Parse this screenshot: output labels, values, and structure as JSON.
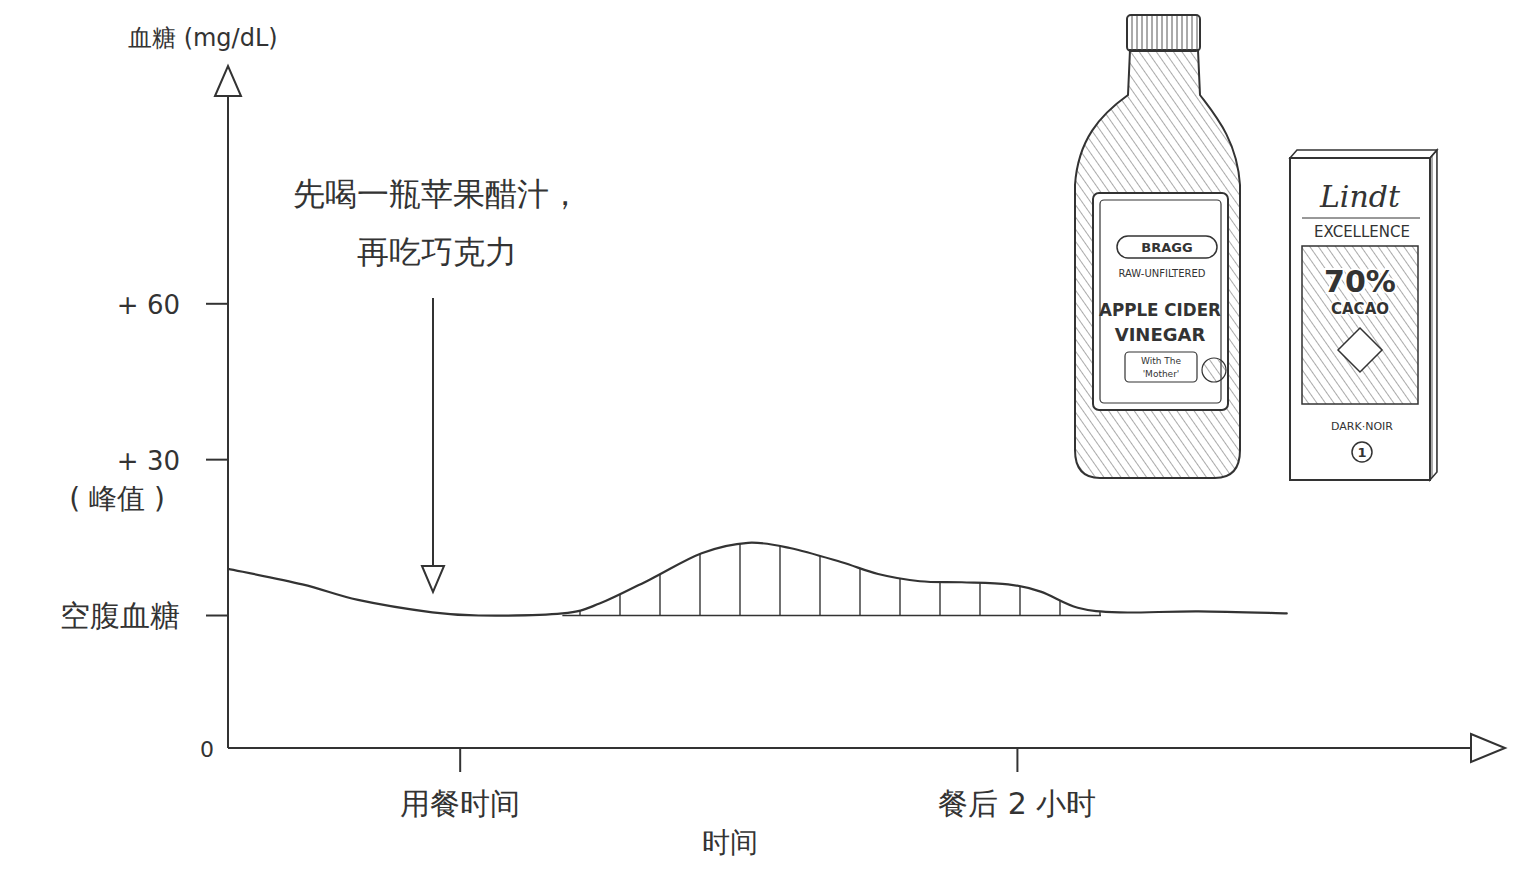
{
  "chart_data": {
    "type": "line",
    "y_label": "血糖 (mg/dL)",
    "x_label": "时间",
    "origin_label": "0",
    "x": [
      -50,
      -34,
      -22,
      -6,
      4,
      22,
      30,
      41,
      52,
      62,
      71,
      82,
      90,
      99,
      108,
      118,
      125,
      133,
      142,
      159,
      178
    ],
    "values": [
      9,
      6,
      3,
      0.6,
      0,
      0.4,
      2.3,
      7,
      12,
      14,
      13,
      10.3,
      8,
      6.6,
      6.4,
      6,
      4.6,
      1.5,
      0.6,
      0.8,
      0.4
    ],
    "color": "#333333",
    "shaded_range": [
      22,
      138
    ],
    "xlim": [
      -50,
      225
    ],
    "xticks": [
      {
        "value": 0,
        "label": "用餐时间"
      },
      {
        "value": 120,
        "label": "餐后 2 小时"
      }
    ],
    "ylim": [
      -25.5,
      105
    ],
    "yticks": [
      {
        "value": 0,
        "label": "空腹血糖"
      },
      {
        "value": 30,
        "label": "+ 30"
      },
      {
        "value": 60,
        "label": "+ 60"
      }
    ],
    "peak_label": "( 峰值 )",
    "annotation": [
      "先喝一瓶苹果醋汁，",
      "再吃巧克力"
    ],
    "grid": false
  },
  "illustrations": {
    "vinegar_bottle": {
      "brand": "BRAGG",
      "lines": [
        "RAW-UNFILTERED",
        "APPLE CIDER",
        "VINEGAR"
      ],
      "badge": [
        "With The",
        "'Mother'"
      ]
    },
    "chocolate": {
      "brand": "Lindt",
      "line": "EXCELLENCE",
      "cacao": [
        "70%",
        "CACAO"
      ],
      "variety": "DARK·NOIR",
      "number": "1"
    }
  }
}
